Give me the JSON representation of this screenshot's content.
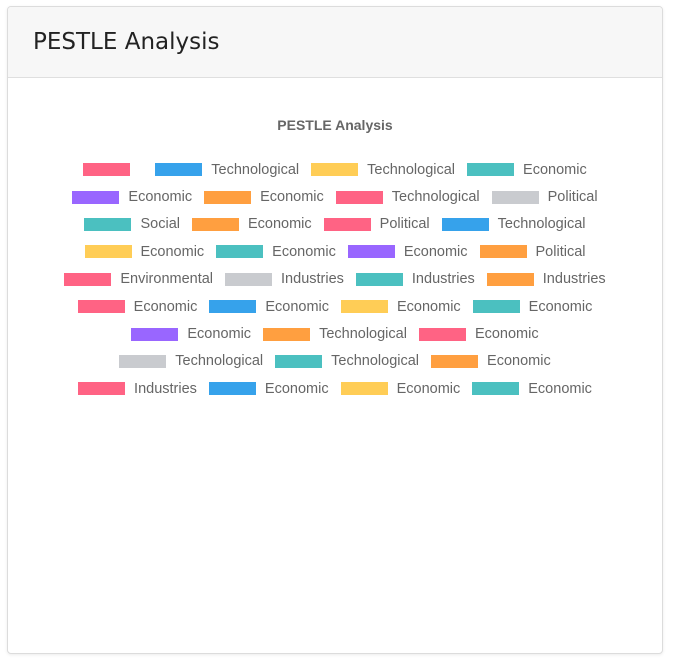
{
  "card": {
    "title": "PESTLE Analysis"
  },
  "chart_data": {
    "type": "bar",
    "title": "PESTLE Analysis",
    "legend_position": "top",
    "series": [
      {
        "name": "",
        "color": "#ff6384"
      },
      {
        "name": "Technological",
        "color": "#36a2eb"
      },
      {
        "name": "Technological",
        "color": "#ffcd56"
      },
      {
        "name": "Economic",
        "color": "#4bc0c0"
      },
      {
        "name": "Economic",
        "color": "#9966ff"
      },
      {
        "name": "Economic",
        "color": "#ff9f40"
      },
      {
        "name": "Technological",
        "color": "#ff6384"
      },
      {
        "name": "Political",
        "color": "#c9cbcf"
      },
      {
        "name": "Social",
        "color": "#4bc0c0"
      },
      {
        "name": "Economic",
        "color": "#ff9f40"
      },
      {
        "name": "Political",
        "color": "#ff6384"
      },
      {
        "name": "Technological",
        "color": "#36a2eb"
      },
      {
        "name": "Economic",
        "color": "#ffcd56"
      },
      {
        "name": "Economic",
        "color": "#4bc0c0"
      },
      {
        "name": "Economic",
        "color": "#9966ff"
      },
      {
        "name": "Political",
        "color": "#ff9f40"
      },
      {
        "name": "Environmental",
        "color": "#ff6384"
      },
      {
        "name": "Industries",
        "color": "#c9cbcf"
      },
      {
        "name": "Industries",
        "color": "#4bc0c0"
      },
      {
        "name": "Industries",
        "color": "#ff9f40"
      },
      {
        "name": "Economic",
        "color": "#ff6384"
      },
      {
        "name": "Economic",
        "color": "#36a2eb"
      },
      {
        "name": "Economic",
        "color": "#ffcd56"
      },
      {
        "name": "Economic",
        "color": "#4bc0c0"
      },
      {
        "name": "Economic",
        "color": "#9966ff"
      },
      {
        "name": "Technological",
        "color": "#ff9f40"
      },
      {
        "name": "Economic",
        "color": "#ff6384"
      },
      {
        "name": "Technological",
        "color": "#c9cbcf"
      },
      {
        "name": "Technological",
        "color": "#4bc0c0"
      },
      {
        "name": "Economic",
        "color": "#ff9f40"
      },
      {
        "name": "Industries",
        "color": "#ff6384"
      },
      {
        "name": "Economic",
        "color": "#36a2eb"
      },
      {
        "name": "Economic",
        "color": "#ffcd56"
      },
      {
        "name": "Economic",
        "color": "#4bc0c0"
      }
    ],
    "legend_rows": [
      [
        0,
        1,
        2,
        3
      ],
      [
        4,
        5,
        6,
        7
      ],
      [
        8,
        9,
        10,
        11
      ],
      [
        12,
        13,
        14,
        15
      ],
      [
        16,
        17,
        18,
        19
      ],
      [
        20,
        21,
        22,
        23
      ],
      [
        24,
        25,
        26
      ],
      [
        27,
        28,
        29
      ],
      [
        30,
        31,
        32,
        33
      ]
    ]
  }
}
